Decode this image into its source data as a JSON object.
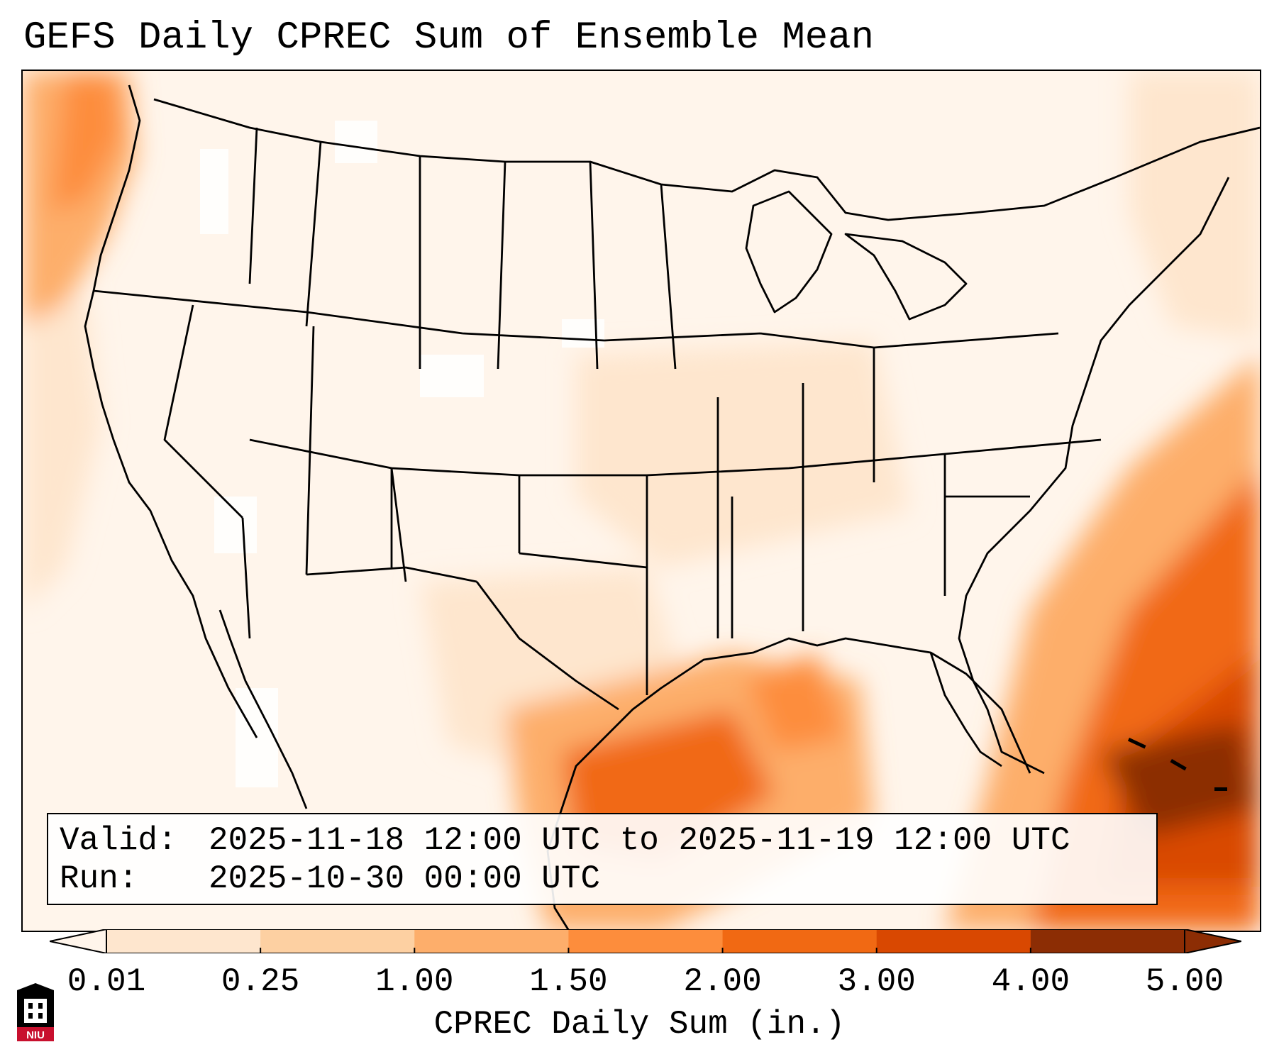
{
  "title": "GEFS Daily CPREC Sum of Ensemble Mean",
  "info": {
    "valid_label": "Valid:",
    "valid_value": "2025-11-18 12:00 UTC to 2025-11-19 12:00 UTC",
    "run_label": "Run:",
    "run_value": "2025-10-30 00:00 UTC"
  },
  "colorbar": {
    "label": "CPREC Daily Sum (in.)",
    "ticks": [
      "0.01",
      "0.25",
      "1.00",
      "1.50",
      "2.00",
      "3.00",
      "4.00",
      "5.00"
    ],
    "colors": [
      "#fff5eb",
      "#fee6ce",
      "#fdd0a2",
      "#fdae6b",
      "#fd8d3c",
      "#f16913",
      "#d94801",
      "#8c2d04"
    ],
    "extend": "both"
  },
  "logo": {
    "text": "NIU"
  },
  "map": {
    "region": "Contiguous United States",
    "field": "GEFS ensemble mean daily convective precipitation"
  }
}
